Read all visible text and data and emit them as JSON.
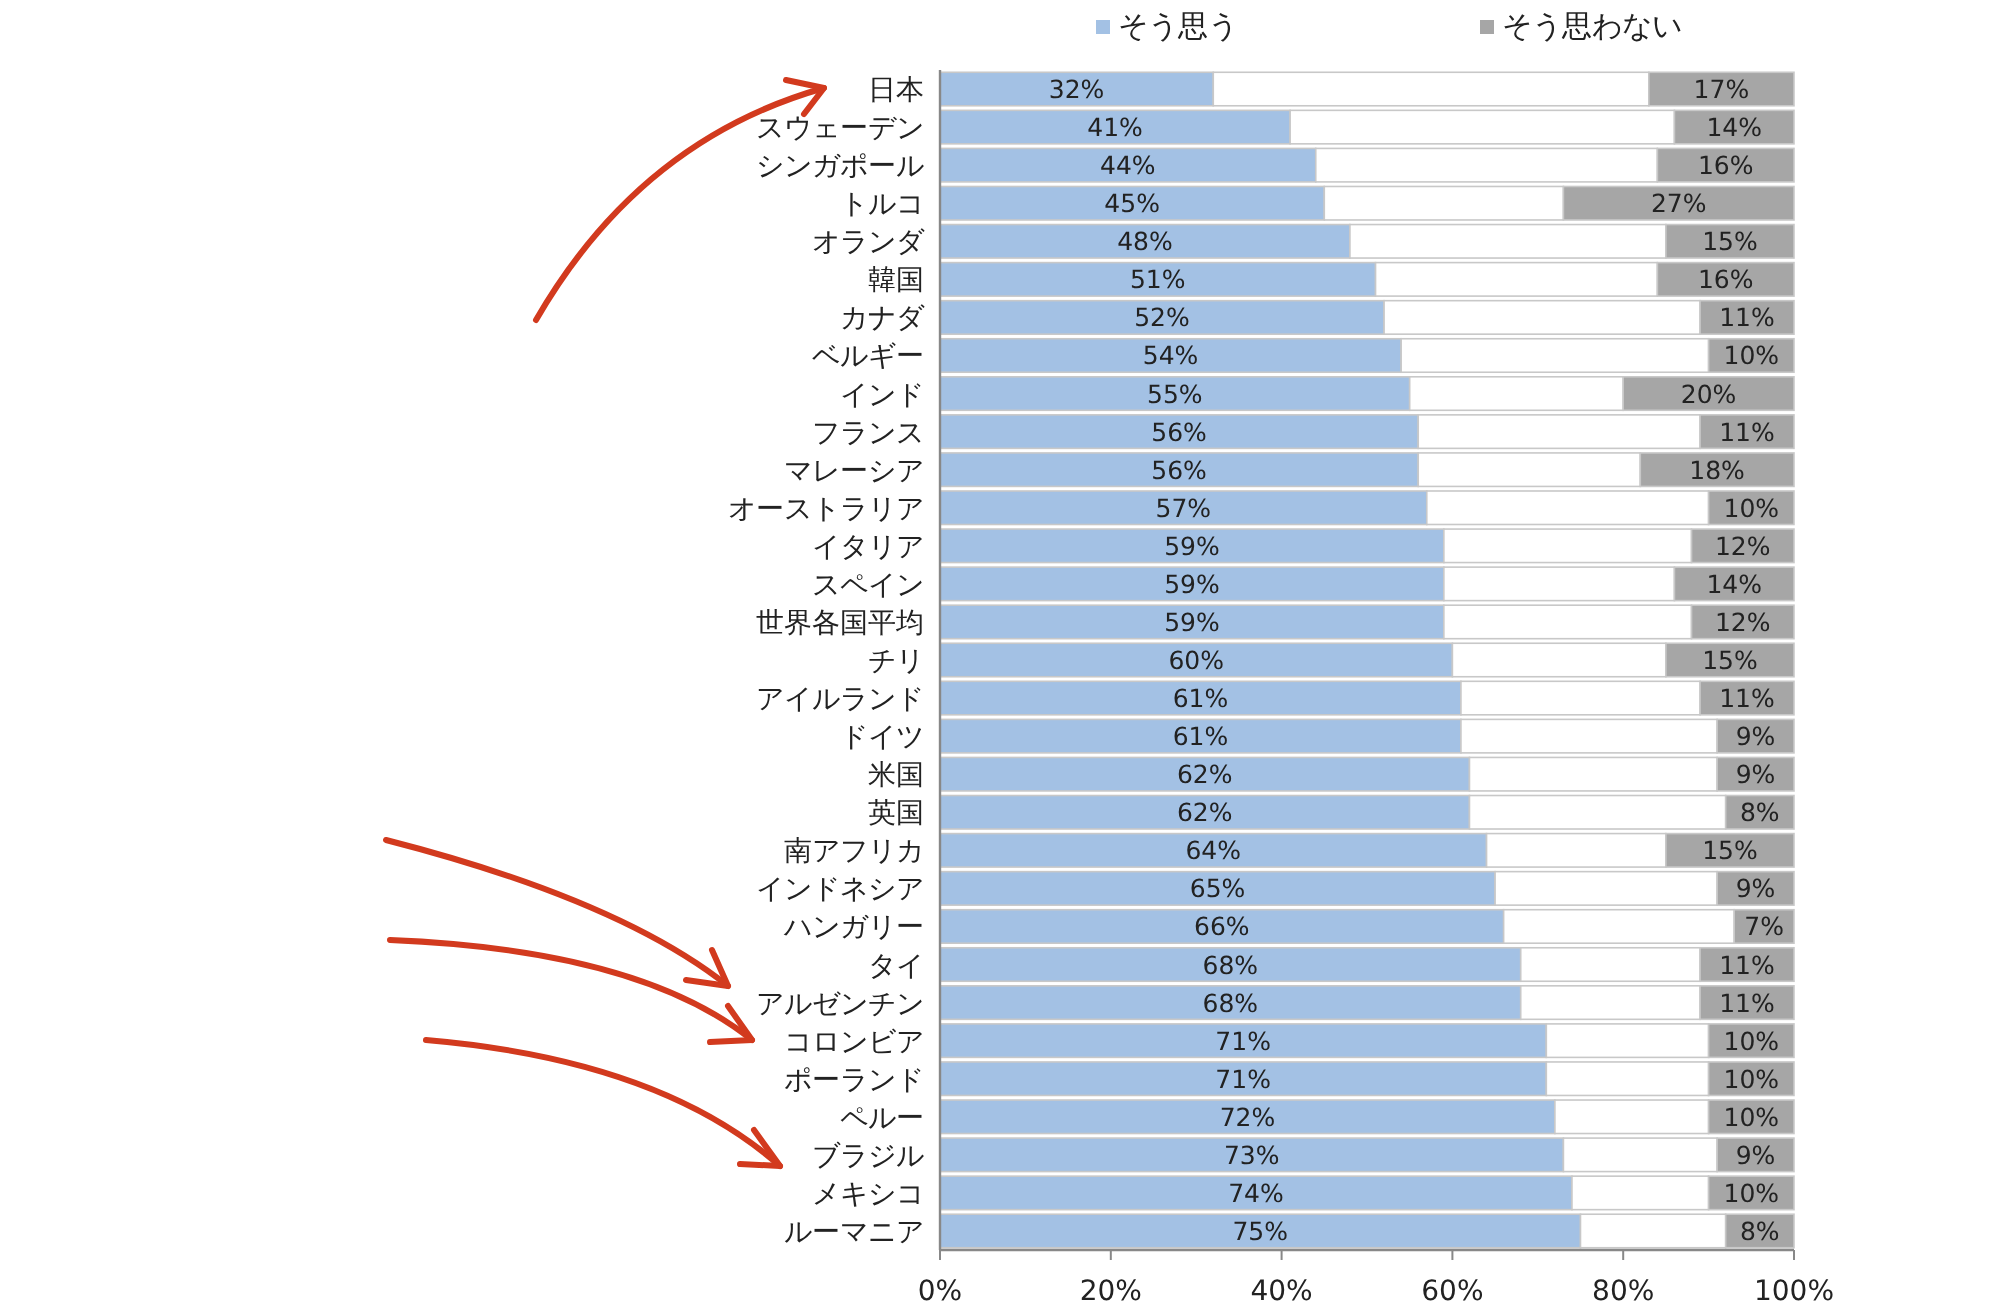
{
  "chart_data": {
    "type": "bar",
    "orientation": "horizontal",
    "stacked": true,
    "legend": "top",
    "grid": false,
    "categories": [
      "日本",
      "スウェーデン",
      "シンガポール",
      "トルコ",
      "オランダ",
      "韓国",
      "カナダ",
      "ベルギー",
      "インド",
      "フランス",
      "マレーシア",
      "オーストラリア",
      "イタリア",
      "スペイン",
      "世界各国平均",
      "チリ",
      "アイルランド",
      "ドイツ",
      "米国",
      "英国",
      "南アフリカ",
      "インドネシア",
      "ハンガリー",
      "タイ",
      "アルゼンチン",
      "コロンビア",
      "ポーランド",
      "ペルー",
      "ブラジル",
      "メキシコ",
      "ルーマニア"
    ],
    "series": [
      {
        "name": "そう思う",
        "color": "#a3c1e4",
        "values": [
          32,
          41,
          44,
          45,
          48,
          51,
          52,
          54,
          55,
          56,
          56,
          57,
          59,
          59,
          59,
          60,
          61,
          61,
          62,
          62,
          64,
          65,
          66,
          68,
          68,
          71,
          71,
          72,
          73,
          74,
          75
        ],
        "value_labels": [
          "32%",
          "41%",
          "44%",
          "45%",
          "48%",
          "51%",
          "52%",
          "54%",
          "55%",
          "56%",
          "56%",
          "57%",
          "59%",
          "59%",
          "59%",
          "60%",
          "61%",
          "61%",
          "62%",
          "62%",
          "64%",
          "65%",
          "66%",
          "68%",
          "68%",
          "71%",
          "71%",
          "72%",
          "73%",
          "74%",
          "75%"
        ]
      },
      {
        "color": "#ffffff",
        "values": [
          51,
          45,
          40,
          28,
          37,
          33,
          37,
          36,
          25,
          33,
          26,
          33,
          29,
          27,
          29,
          25,
          28,
          30,
          29,
          30,
          21,
          26,
          27,
          21,
          21,
          19,
          19,
          18,
          18,
          16,
          17
        ]
      },
      {
        "name": "そう思わない",
        "color": "#a6a6a6",
        "values": [
          17,
          14,
          16,
          27,
          15,
          16,
          11,
          10,
          20,
          11,
          18,
          10,
          12,
          14,
          12,
          15,
          11,
          9,
          9,
          8,
          15,
          9,
          7,
          11,
          11,
          10,
          10,
          10,
          9,
          10,
          8
        ],
        "value_labels": [
          "17%",
          "14%",
          "16%",
          "27%",
          "15%",
          "16%",
          "11%",
          "10%",
          "20%",
          "11%",
          "18%",
          "10%",
          "12%",
          "14%",
          "12%",
          "15%",
          "11%",
          "9%",
          "9%",
          "8%",
          "15%",
          "9%",
          "7%",
          "11%",
          "11%",
          "10%",
          "10%",
          "10%",
          "9%",
          "10%",
          "8%"
        ]
      }
    ],
    "xlim": [
      0,
      100
    ],
    "xticks": [
      {
        "value": 0,
        "label": "0%"
      },
      {
        "value": 20,
        "label": "20%"
      },
      {
        "value": 40,
        "label": "40%"
      },
      {
        "value": 60,
        "label": "60%"
      },
      {
        "value": 80,
        "label": "80%"
      },
      {
        "value": 100,
        "label": "100%"
      }
    ]
  }
}
